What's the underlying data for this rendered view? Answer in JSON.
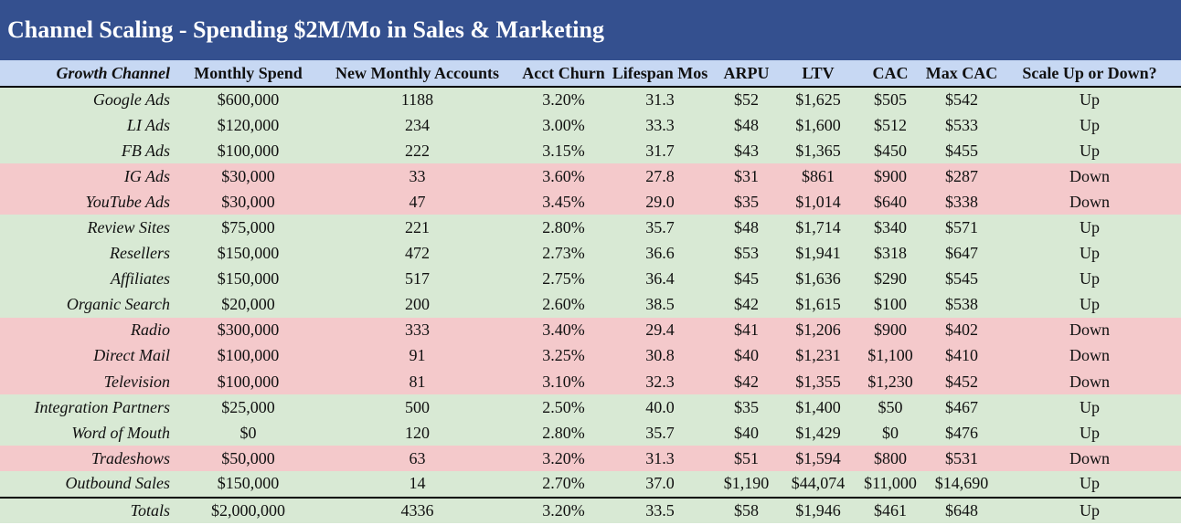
{
  "title": "Channel Scaling - Spending $2M/Mo in Sales & Marketing",
  "columns": [
    "Growth Channel",
    "Monthly Spend",
    "New Monthly Accounts",
    "Acct Churn",
    "Lifespan Mos",
    "ARPU",
    "LTV",
    "CAC",
    "Max CAC",
    "Scale Up or Down?"
  ],
  "rows": [
    {
      "channel": "Google Ads",
      "spend": "$600,000",
      "accounts": "1188",
      "churn": "3.20%",
      "lifespan": "31.3",
      "arpu": "$52",
      "ltv": "$1,625",
      "cac": "$505",
      "maxcac": "$542",
      "scale": "Up"
    },
    {
      "channel": "LI Ads",
      "spend": "$120,000",
      "accounts": "234",
      "churn": "3.00%",
      "lifespan": "33.3",
      "arpu": "$48",
      "ltv": "$1,600",
      "cac": "$512",
      "maxcac": "$533",
      "scale": "Up"
    },
    {
      "channel": "FB Ads",
      "spend": "$100,000",
      "accounts": "222",
      "churn": "3.15%",
      "lifespan": "31.7",
      "arpu": "$43",
      "ltv": "$1,365",
      "cac": "$450",
      "maxcac": "$455",
      "scale": "Up"
    },
    {
      "channel": "IG Ads",
      "spend": "$30,000",
      "accounts": "33",
      "churn": "3.60%",
      "lifespan": "27.8",
      "arpu": "$31",
      "ltv": "$861",
      "cac": "$900",
      "maxcac": "$287",
      "scale": "Down"
    },
    {
      "channel": "YouTube Ads",
      "spend": "$30,000",
      "accounts": "47",
      "churn": "3.45%",
      "lifespan": "29.0",
      "arpu": "$35",
      "ltv": "$1,014",
      "cac": "$640",
      "maxcac": "$338",
      "scale": "Down"
    },
    {
      "channel": "Review Sites",
      "spend": "$75,000",
      "accounts": "221",
      "churn": "2.80%",
      "lifespan": "35.7",
      "arpu": "$48",
      "ltv": "$1,714",
      "cac": "$340",
      "maxcac": "$571",
      "scale": "Up"
    },
    {
      "channel": "Resellers",
      "spend": "$150,000",
      "accounts": "472",
      "churn": "2.73%",
      "lifespan": "36.6",
      "arpu": "$53",
      "ltv": "$1,941",
      "cac": "$318",
      "maxcac": "$647",
      "scale": "Up"
    },
    {
      "channel": "Affiliates",
      "spend": "$150,000",
      "accounts": "517",
      "churn": "2.75%",
      "lifespan": "36.4",
      "arpu": "$45",
      "ltv": "$1,636",
      "cac": "$290",
      "maxcac": "$545",
      "scale": "Up"
    },
    {
      "channel": "Organic Search",
      "spend": "$20,000",
      "accounts": "200",
      "churn": "2.60%",
      "lifespan": "38.5",
      "arpu": "$42",
      "ltv": "$1,615",
      "cac": "$100",
      "maxcac": "$538",
      "scale": "Up"
    },
    {
      "channel": "Radio",
      "spend": "$300,000",
      "accounts": "333",
      "churn": "3.40%",
      "lifespan": "29.4",
      "arpu": "$41",
      "ltv": "$1,206",
      "cac": "$900",
      "maxcac": "$402",
      "scale": "Down"
    },
    {
      "channel": "Direct Mail",
      "spend": "$100,000",
      "accounts": "91",
      "churn": "3.25%",
      "lifespan": "30.8",
      "arpu": "$40",
      "ltv": "$1,231",
      "cac": "$1,100",
      "maxcac": "$410",
      "scale": "Down"
    },
    {
      "channel": "Television",
      "spend": "$100,000",
      "accounts": "81",
      "churn": "3.10%",
      "lifespan": "32.3",
      "arpu": "$42",
      "ltv": "$1,355",
      "cac": "$1,230",
      "maxcac": "$452",
      "scale": "Down"
    },
    {
      "channel": "Integration Partners",
      "spend": "$25,000",
      "accounts": "500",
      "churn": "2.50%",
      "lifespan": "40.0",
      "arpu": "$35",
      "ltv": "$1,400",
      "cac": "$50",
      "maxcac": "$467",
      "scale": "Up"
    },
    {
      "channel": "Word of Mouth",
      "spend": "$0",
      "accounts": "120",
      "churn": "2.80%",
      "lifespan": "35.7",
      "arpu": "$40",
      "ltv": "$1,429",
      "cac": "$0",
      "maxcac": "$476",
      "scale": "Up"
    },
    {
      "channel": "Tradeshows",
      "spend": "$50,000",
      "accounts": "63",
      "churn": "3.20%",
      "lifespan": "31.3",
      "arpu": "$51",
      "ltv": "$1,594",
      "cac": "$800",
      "maxcac": "$531",
      "scale": "Down"
    },
    {
      "channel": "Outbound Sales",
      "spend": "$150,000",
      "accounts": "14",
      "churn": "2.70%",
      "lifespan": "37.0",
      "arpu": "$1,190",
      "ltv": "$44,074",
      "cac": "$11,000",
      "maxcac": "$14,690",
      "scale": "Up"
    }
  ],
  "totals": {
    "channel": "Totals",
    "spend": "$2,000,000",
    "accounts": "4336",
    "churn": "3.20%",
    "lifespan": "33.5",
    "arpu": "$58",
    "ltv": "$1,946",
    "cac": "$461",
    "maxcac": "$648",
    "scale": "Up"
  },
  "colors": {
    "title_bg": "#34508f",
    "header_bg": "#c7d8f3",
    "up_row": "#d8e9d4",
    "down_row": "#f4c9cb"
  }
}
